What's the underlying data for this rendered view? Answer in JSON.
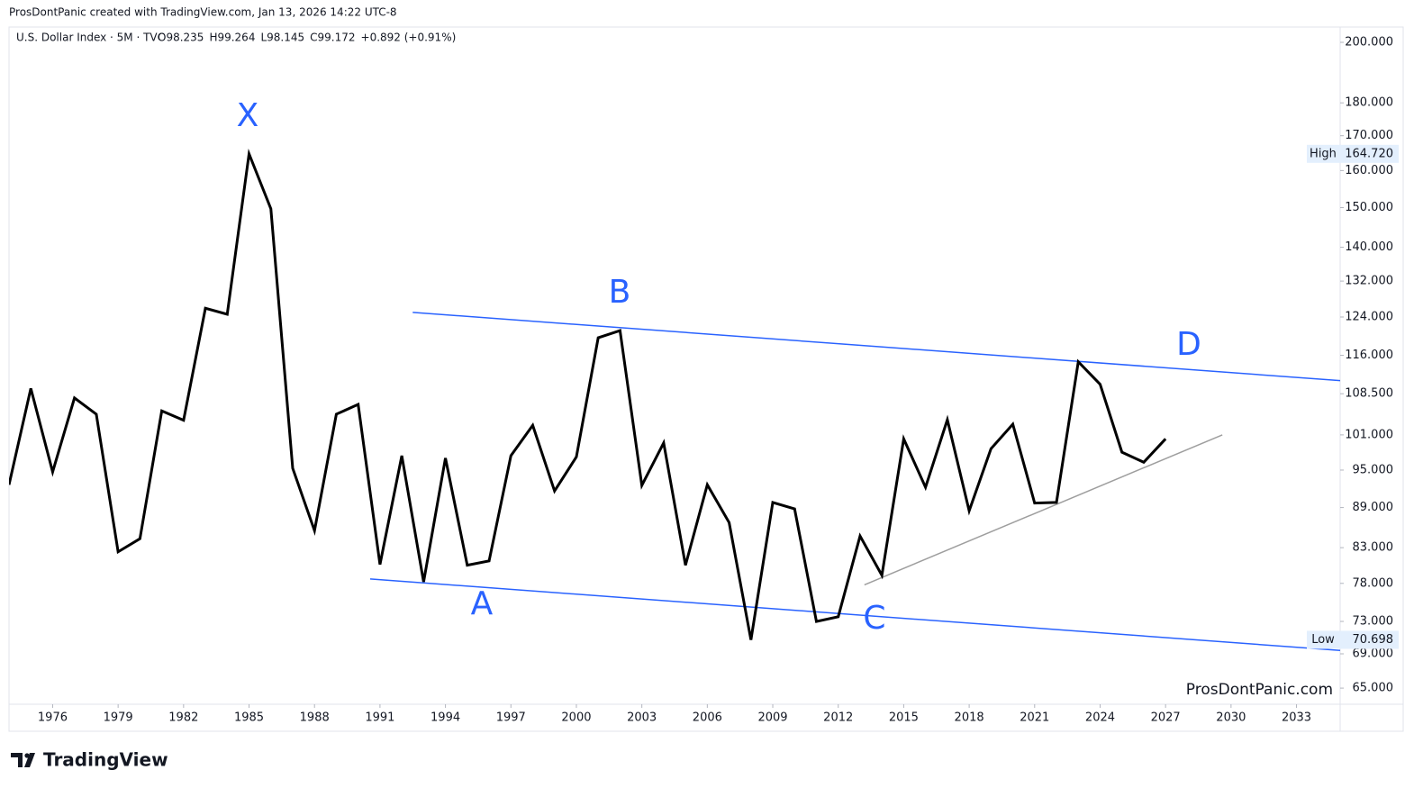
{
  "chart_data": {
    "type": "line",
    "credit": "ProsDontPanic created with TradingView.com, Jan 13, 2026 14:22 UTC-8",
    "symbol": "U.S. Dollar Index · 5M · TVC",
    "quote": [
      "O98.235",
      "H99.264",
      "L98.145",
      "C99.172",
      "+0.892 (+0.91%)"
    ],
    "watermark": "ProsDontPanic.com",
    "brand": "TradingView",
    "log_scale": true,
    "x": [
      1974,
      1975,
      1976,
      1977,
      1978,
      1979,
      1980,
      1981,
      1982,
      1983,
      1984,
      1985,
      1986,
      1987,
      1988,
      1989,
      1990,
      1991,
      1992,
      1993,
      1994,
      1995,
      1996,
      1997,
      1998,
      1999,
      2000,
      2001,
      2002,
      2003,
      2004,
      2005,
      2006,
      2007,
      2008,
      2009,
      2010,
      2011,
      2012,
      2013,
      2014,
      2015,
      2016,
      2017,
      2018,
      2019,
      2020,
      2021,
      2022,
      2023,
      2024,
      2025,
      2026,
      2027
    ],
    "series": [
      {
        "color": "#000000",
        "values": [
          92.6,
          109.5,
          94.7,
          107.7,
          104.7,
          82.4,
          84.3,
          105.3,
          103.6,
          125.9,
          124.6,
          164.72,
          149.7,
          95.3,
          85.5,
          104.7,
          106.5,
          80.6,
          97.4,
          78.2,
          97.0,
          80.5,
          81.1,
          97.4,
          102.7,
          91.6,
          97.2,
          119.6,
          121.1,
          92.5,
          99.6,
          80.5,
          92.6,
          86.7,
          70.698,
          89.8,
          88.8,
          73.0,
          73.6,
          84.7,
          79.1,
          100.3,
          92.2,
          103.7,
          88.5,
          98.6,
          102.9,
          89.7,
          89.8,
          114.7,
          110.3,
          98.0,
          96.3,
          100.3
        ]
      }
    ],
    "trendlines": [
      {
        "color": "#2962ff",
        "x": [
          1992.5,
          2035
        ],
        "values": [
          125.0,
          111.0
        ]
      },
      {
        "color": "#2962ff",
        "x": [
          1990.55,
          2035
        ],
        "values": [
          78.6,
          69.4
        ]
      },
      {
        "color": "#9e9e9e",
        "x": [
          2013.2,
          2029.6
        ],
        "values": [
          77.8,
          101.0
        ]
      }
    ],
    "annotations": [
      "X",
      "B",
      "D",
      "A",
      "C"
    ],
    "markers": [
      {
        "label": "High",
        "value": 164.72,
        "value_label": "164.720"
      },
      {
        "label": "Low",
        "value": 70.698,
        "value_label": "70.698"
      }
    ],
    "xlim": [
      1974,
      2035
    ],
    "xticks": [
      1976,
      1979,
      1982,
      1985,
      1988,
      1991,
      1994,
      1997,
      2000,
      2003,
      2006,
      2009,
      2012,
      2015,
      2018,
      2021,
      2024,
      2027,
      2030,
      2033
    ],
    "ylim": [
      63.3,
      205.4
    ],
    "yticks": [
      {
        "value": 200,
        "label": "200.000"
      },
      {
        "value": 180,
        "label": "180.000"
      },
      {
        "value": 170,
        "label": "170.000"
      },
      {
        "value": 160,
        "label": "160.000"
      },
      {
        "value": 150,
        "label": "150.000"
      },
      {
        "value": 140,
        "label": "140.000"
      },
      {
        "value": 132,
        "label": "132.000"
      },
      {
        "value": 124,
        "label": "124.000"
      },
      {
        "value": 116,
        "label": "116.000"
      },
      {
        "value": 108.5,
        "label": "108.500"
      },
      {
        "value": 101,
        "label": "101.000"
      },
      {
        "value": 95,
        "label": "95.000"
      },
      {
        "value": 89,
        "label": "89.000"
      },
      {
        "value": 83,
        "label": "83.000"
      },
      {
        "value": 78,
        "label": "78.000"
      },
      {
        "value": 73,
        "label": "73.000"
      },
      {
        "value": 69,
        "label": "69.000"
      },
      {
        "value": 65,
        "label": "65.000"
      }
    ],
    "grid": false
  }
}
